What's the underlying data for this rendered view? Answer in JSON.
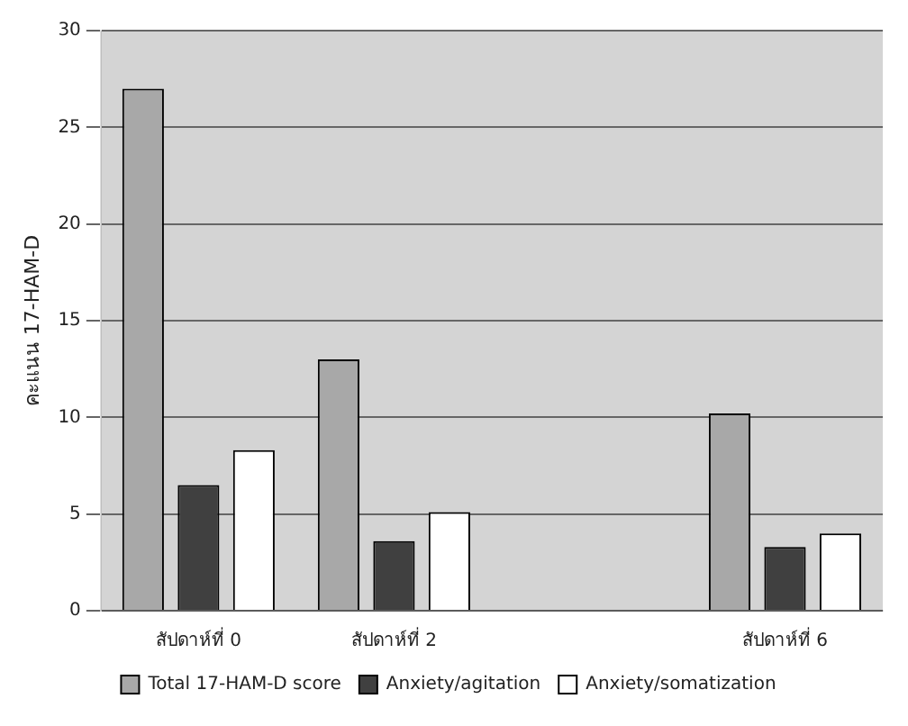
{
  "chart_data": {
    "type": "bar",
    "ylabel": "คะแนน 17-HAM-D",
    "categories": [
      "สัปดาห์ที่ 0",
      "สัปดาห์ที่ 2",
      null,
      "สัปดาห์ที่ 6"
    ],
    "series": [
      {
        "name": "Total 17-HAM-D score",
        "color": "#a8a8a8",
        "values": [
          27,
          13,
          null,
          10.2
        ]
      },
      {
        "name": "Anxiety/agitation",
        "color": "#404040",
        "values": [
          6.5,
          3.6,
          null,
          3.3
        ]
      },
      {
        "name": "Anxiety/somatization",
        "color": "#ffffff",
        "values": [
          8.3,
          5.1,
          null,
          4
        ]
      }
    ],
    "ylim": [
      0,
      30
    ],
    "yticks": [
      0,
      5,
      10,
      15,
      20,
      25,
      30
    ],
    "grid": "y",
    "legend": "bottom"
  }
}
